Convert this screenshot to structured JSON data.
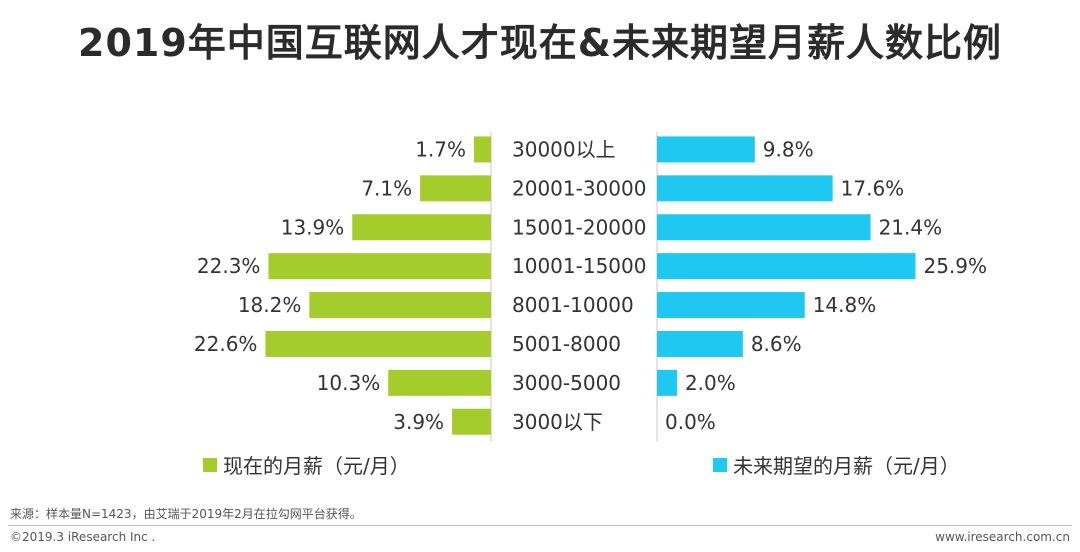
{
  "title": "2019年中国互联网人才现在&未来期望月薪人数比例",
  "chart_data": {
    "type": "bar",
    "orientation": "horizontal-butterfly",
    "categories": [
      "30000以上",
      "20001-30000",
      "15001-20000",
      "10001-15000",
      "8001-10000",
      "5001-8000",
      "3000-5000",
      "3000以下"
    ],
    "series": [
      {
        "name": "现在的月薪（元/月）",
        "color": "#a4cc2a",
        "side": "left",
        "values": [
          1.7,
          7.1,
          13.9,
          22.3,
          18.2,
          22.6,
          10.3,
          3.9
        ],
        "labels": [
          "1.7%",
          "7.1%",
          "13.9%",
          "22.3%",
          "18.2%",
          "22.6%",
          "10.3%",
          "3.9%"
        ]
      },
      {
        "name": "未来期望的月薪（元/月）",
        "color": "#1ec8f0",
        "side": "right",
        "values": [
          9.8,
          17.6,
          21.4,
          25.9,
          14.8,
          8.6,
          2.0,
          0.0
        ],
        "labels": [
          "9.8%",
          "17.6%",
          "21.4%",
          "25.9%",
          "14.8%",
          "8.6%",
          "2.0%",
          "0.0%"
        ]
      }
    ]
  },
  "footer": {
    "source": "来源：样本量N=1423，由艾瑞于2019年2月在拉勾网平台获得。",
    "copyright": "©2019.3 iResearch Inc .",
    "website": "www.iresearch.com.cn"
  }
}
